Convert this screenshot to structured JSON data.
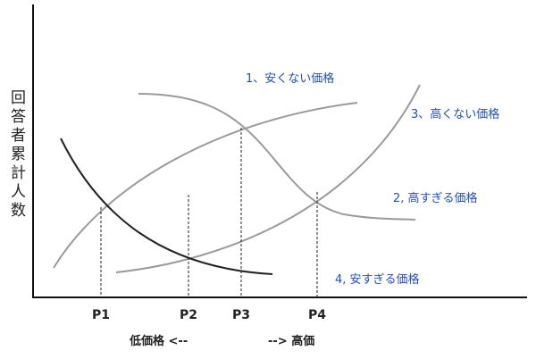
{
  "y_axis_label": "回答者累計人数",
  "curve_labels": [
    "1、安くない価格",
    "3、高くない価格",
    "2, 高すぎる価格",
    "4, 安すぎる価格"
  ],
  "price_points": [
    "P1",
    "P2",
    "P3",
    "P4"
  ],
  "x_direction": {
    "low": "低価格 <--",
    "high": "--> 高価"
  }
}
